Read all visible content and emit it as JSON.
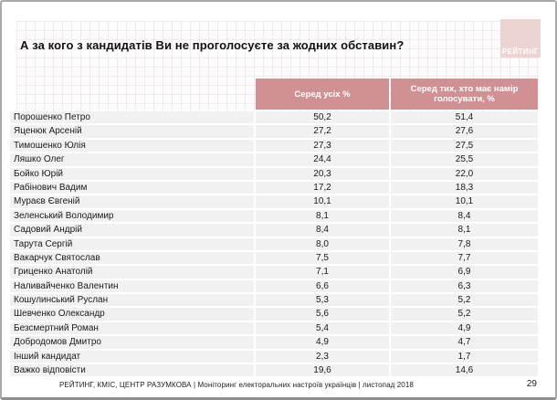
{
  "slide": {
    "title": "А за кого з кандидатів Ви не проголосуєте за жодних обставин?",
    "logo_text": "РЕЙТИНГ",
    "footer_source": "РЕЙТИНГ, КМІС, ЦЕНТР РАЗУМКОВА |  Моніторинг електоральних настроїв українців | листопад 2018",
    "page_number": "29"
  },
  "colors": {
    "header_bg": "#cf9194",
    "row_bg": "#f1f1f2",
    "logo_bg": "#ecd4d2",
    "frame_border": "#a9a9a9"
  },
  "chart_data": {
    "type": "table",
    "title": "А за кого з кандидатів Ви не проголосуєте за жодних обставин?",
    "columns": [
      "",
      "Серед усіх %",
      "Серед тих, хто має намір голосувати, %"
    ],
    "rows": [
      {
        "name": "Порошенко Петро",
        "all": "50,2",
        "voters": "51,4"
      },
      {
        "name": "Яценюк Арсеній",
        "all": "27,2",
        "voters": "27,6"
      },
      {
        "name": "Тимошенко Юлія",
        "all": "27,3",
        "voters": "27,5"
      },
      {
        "name": "Ляшко Олег",
        "all": "24,4",
        "voters": "25,5"
      },
      {
        "name": "Бойко Юрій",
        "all": "20,3",
        "voters": "22,0"
      },
      {
        "name": "Рабінович Вадим",
        "all": "17,2",
        "voters": "18,3"
      },
      {
        "name": "Мураєв Євгеній",
        "all": "10,1",
        "voters": "10,1"
      },
      {
        "name": "Зеленський Володимир",
        "all": "8,1",
        "voters": "8,4"
      },
      {
        "name": "Садовий Андрій",
        "all": "8,4",
        "voters": "8,1"
      },
      {
        "name": "Тарута Сергій",
        "all": "8,0",
        "voters": "7,8"
      },
      {
        "name": "Вакарчук Святослав",
        "all": "7,5",
        "voters": "7,7"
      },
      {
        "name": "Гриценко Анатолій",
        "all": "7,1",
        "voters": "6,9"
      },
      {
        "name": "Наливайченко Валентин",
        "all": "6,6",
        "voters": "6,3"
      },
      {
        "name": "Кошулинський Руслан",
        "all": "5,3",
        "voters": "5,2"
      },
      {
        "name": "Шевченко Олександр",
        "all": "5,6",
        "voters": "5,2"
      },
      {
        "name": "Безсмертний Роман",
        "all": "5,4",
        "voters": "4,9"
      },
      {
        "name": "Добродомов Дмитро",
        "all": "4,9",
        "voters": "4,7"
      },
      {
        "name": "Інший кандидат",
        "all": "2,3",
        "voters": "1,7"
      },
      {
        "name": "Важко відповісти",
        "all": "19,6",
        "voters": "14,6"
      }
    ]
  }
}
